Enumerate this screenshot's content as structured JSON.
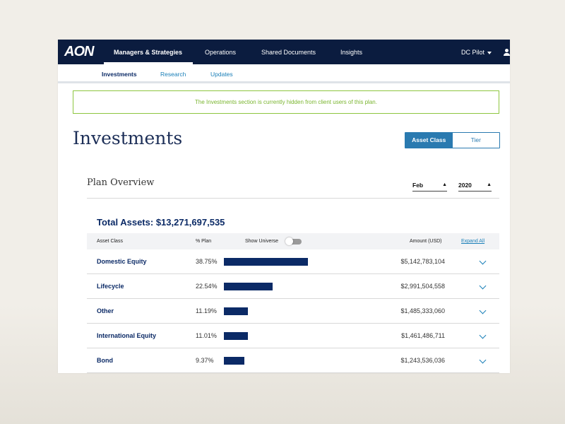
{
  "brand": {
    "logo_text": "AON",
    "colors": {
      "nav": "#0b1c3f",
      "primary": "#0b2a66",
      "link": "#1a7fb8",
      "banner": "#8dc63f"
    }
  },
  "topnav": {
    "items": [
      {
        "label": "Managers & Strategies",
        "active": true
      },
      {
        "label": "Operations",
        "active": false
      },
      {
        "label": "Shared Documents",
        "active": false
      },
      {
        "label": "Insights",
        "active": false
      }
    ],
    "user_menu": "DC Pilot",
    "user_icon": "user-icon"
  },
  "subnav": {
    "items": [
      {
        "label": "Investments",
        "active": true
      },
      {
        "label": "Research",
        "active": false
      },
      {
        "label": "Updates",
        "active": false
      }
    ]
  },
  "banner": {
    "text": "The Investments section is currently hidden from client users of this plan."
  },
  "page": {
    "title": "Investments"
  },
  "view_toggle": {
    "options": [
      "Asset Class",
      "Tier"
    ],
    "selected": "Asset Class"
  },
  "overview": {
    "title": "Plan Overview",
    "month": "Feb",
    "year": "2020",
    "total_label": "Total Assets:",
    "total_value": "$13,271,697,535"
  },
  "table": {
    "headers": {
      "asset_class": "Asset Class",
      "pct_plan": "% Plan",
      "show_universe": "Show Universe",
      "amount": "Amount (USD)",
      "expand_all": "Expand All"
    },
    "show_universe_on": false,
    "rows": [
      {
        "asset_class": "Domestic Equity",
        "pct": "38.75%",
        "pct_value": 38.75,
        "amount": "$5,142,783,104"
      },
      {
        "asset_class": "Lifecycle",
        "pct": "22.54%",
        "pct_value": 22.54,
        "amount": "$2,991,504,558"
      },
      {
        "asset_class": "Other",
        "pct": "11.19%",
        "pct_value": 11.19,
        "amount": "$1,485,333,060"
      },
      {
        "asset_class": "International Equity",
        "pct": "11.01%",
        "pct_value": 11.01,
        "amount": "$1,461,486,711"
      },
      {
        "asset_class": "Bond",
        "pct": "9.37%",
        "pct_value": 9.37,
        "amount": "$1,243,536,036"
      }
    ]
  }
}
